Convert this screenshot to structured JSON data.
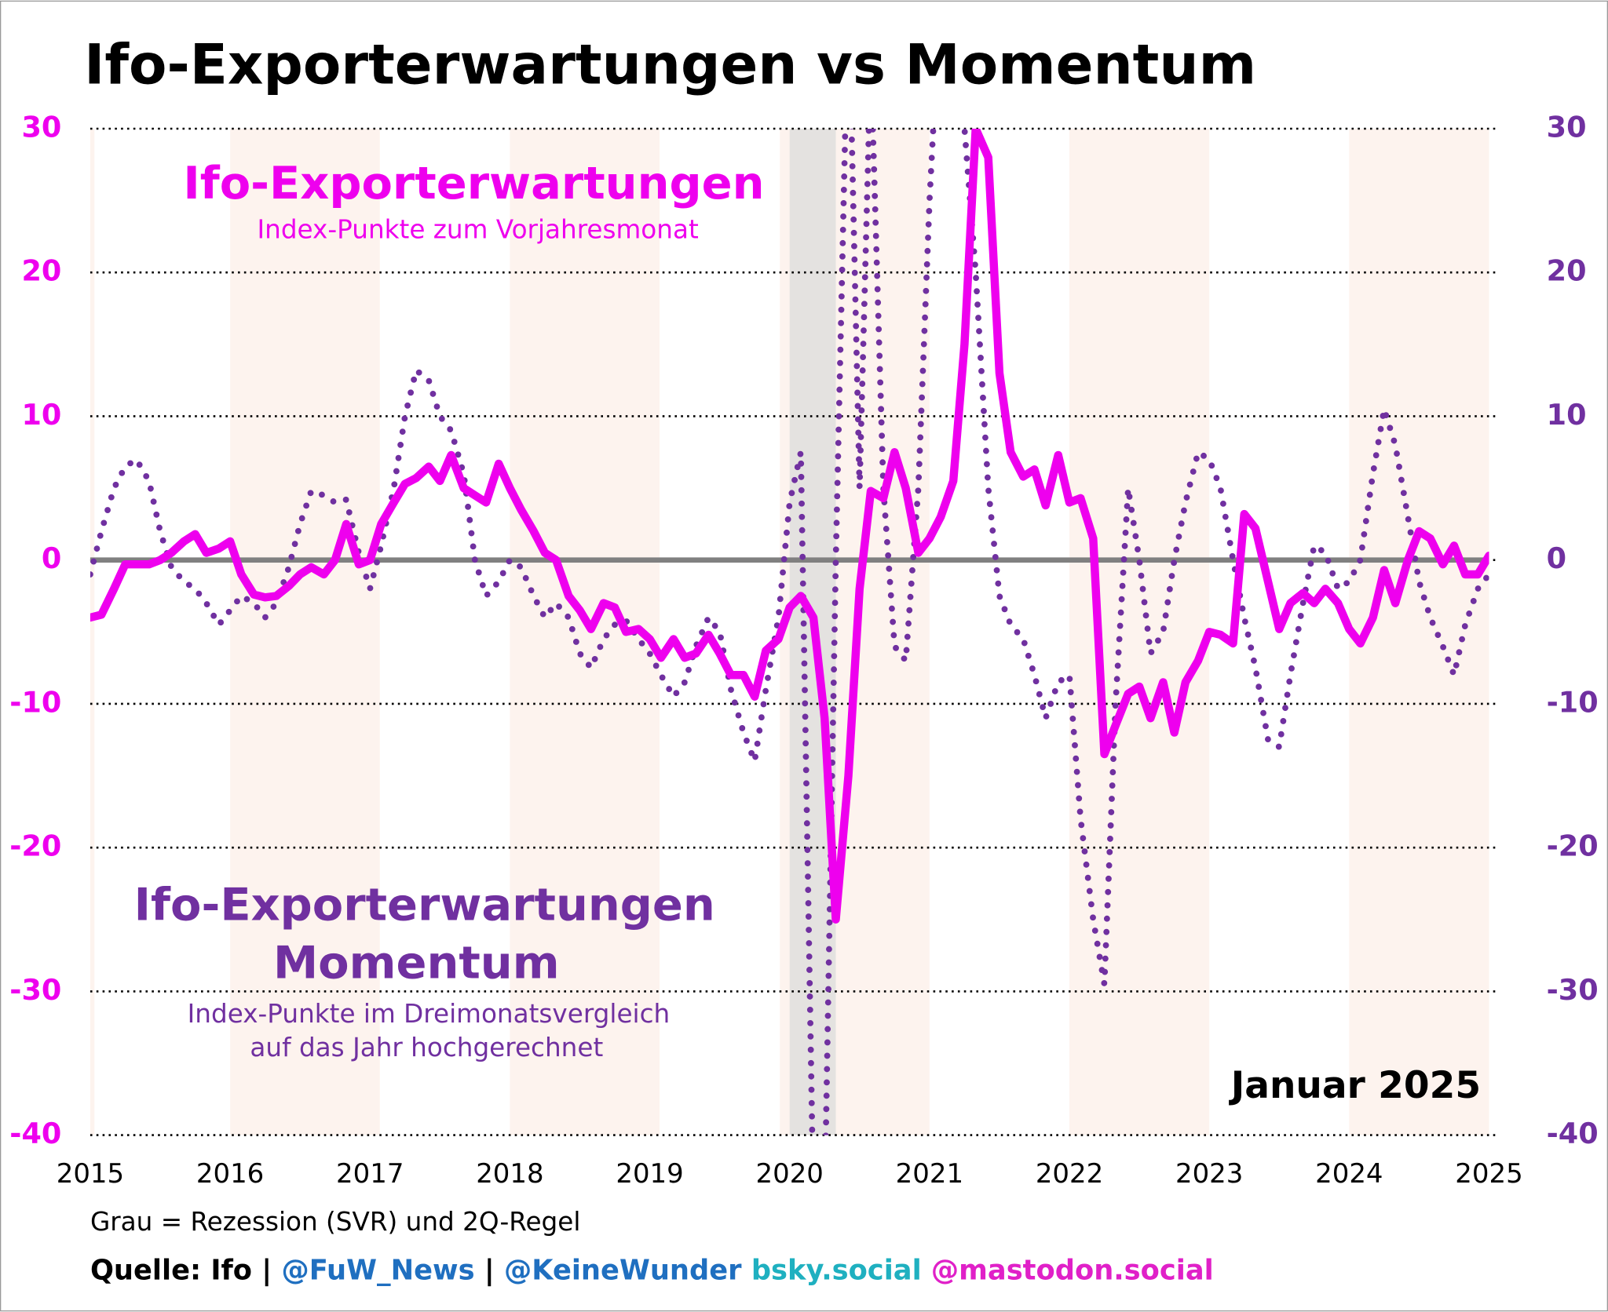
{
  "chart_data": {
    "type": "line",
    "title": "Ifo-Exporterwartungen vs Momentum",
    "annotations": {
      "series1_title": "Ifo-Exporterwartungen",
      "series1_subtitle": "Index-Punkte zum Vorjahresmonat",
      "series2_title_line1": "Ifo-Exporterwartungen",
      "series2_title_line2": "Momentum",
      "series2_subtitle_line1": "Index-Punkte im Dreimonatsvergleich",
      "series2_subtitle_line2": "auf das Jahr hochgerechnet",
      "date": "Januar 2025",
      "note": "Grau = Rezession (SVR) und 2Q-Regel",
      "source": [
        {
          "text": "Quelle: Ifo | ",
          "color": "#000000"
        },
        {
          "text": "@FuW_News",
          "color": "#1f6fc0"
        },
        {
          "text": " | ",
          "color": "#000000"
        },
        {
          "text": "@KeineWunder",
          "color": "#1f6fc0"
        },
        {
          "text": " bsky.social",
          "color": "#1fb0c0"
        },
        {
          "text": " @mastodon.social",
          "color": "#e020c8"
        }
      ]
    },
    "x": [
      2015,
      2015.08,
      2015.17,
      2015.25,
      2015.33,
      2015.42,
      2015.5,
      2015.58,
      2015.67,
      2015.75,
      2015.83,
      2015.92,
      2016,
      2016.08,
      2016.17,
      2016.25,
      2016.33,
      2016.42,
      2016.5,
      2016.58,
      2016.67,
      2016.75,
      2016.83,
      2016.92,
      2017,
      2017.08,
      2017.17,
      2017.25,
      2017.33,
      2017.42,
      2017.5,
      2017.58,
      2017.67,
      2017.75,
      2017.83,
      2017.92,
      2018,
      2018.08,
      2018.17,
      2018.25,
      2018.33,
      2018.42,
      2018.5,
      2018.58,
      2018.67,
      2018.75,
      2018.83,
      2018.92,
      2019,
      2019.08,
      2019.17,
      2019.25,
      2019.33,
      2019.42,
      2019.5,
      2019.58,
      2019.67,
      2019.75,
      2019.83,
      2019.92,
      2020,
      2020.08,
      2020.17,
      2020.25,
      2020.33,
      2020.42,
      2020.5,
      2020.58,
      2020.67,
      2020.75,
      2020.83,
      2020.92,
      2021,
      2021.08,
      2021.17,
      2021.25,
      2021.33,
      2021.42,
      2021.5,
      2021.58,
      2021.67,
      2021.75,
      2021.83,
      2021.92,
      2022,
      2022.08,
      2022.17,
      2022.25,
      2022.33,
      2022.42,
      2022.5,
      2022.58,
      2022.67,
      2022.75,
      2022.83,
      2022.92,
      2023,
      2023.08,
      2023.17,
      2023.25,
      2023.33,
      2023.42,
      2023.5,
      2023.58,
      2023.67,
      2023.75,
      2023.83,
      2023.92,
      2024,
      2024.08,
      2024.17,
      2024.25,
      2024.33,
      2024.42,
      2024.5,
      2024.58,
      2024.67,
      2024.75,
      2024.83,
      2024.92,
      2025
    ],
    "series": [
      {
        "name": "Ifo-Exporterwartungen",
        "color": "#ee00ee",
        "style": "solid",
        "axis": "y",
        "values": [
          -4,
          -3.8,
          -2,
          -0.3,
          -0.3,
          -0.3,
          0,
          0.5,
          1.3,
          1.8,
          0.5,
          0.8,
          1.3,
          -1,
          -2.4,
          -2.6,
          -2.5,
          -1.8,
          -1,
          -0.5,
          -1,
          0,
          2.5,
          -0.3,
          0,
          2.5,
          4,
          5.3,
          5.7,
          6.5,
          5.5,
          7.3,
          5,
          4.5,
          4,
          6.7,
          5,
          3.5,
          2,
          0.5,
          0,
          -2.5,
          -3.5,
          -4.8,
          -3,
          -3.3,
          -5,
          -4.8,
          -5.5,
          -6.8,
          -5.5,
          -6.8,
          -6.5,
          -5.2,
          -6.5,
          -8,
          -8,
          -9.5,
          -6.3,
          -5.5,
          -3.3,
          -2.5,
          -4,
          -11,
          -25,
          -15,
          -2,
          4.8,
          4.3,
          7.5,
          5,
          0.5,
          1.5,
          3,
          5.5,
          15,
          30,
          28,
          13,
          7.5,
          5.8,
          6.3,
          3.8,
          7.3,
          4,
          4.3,
          1.5,
          -13.5,
          -11.5,
          -9.3,
          -8.8,
          -11,
          -8.5,
          -12,
          -8.5,
          -7,
          -5,
          -5.2,
          -5.8,
          3.2,
          2.2,
          -1.5,
          -4.8,
          -3,
          -2.3,
          -3,
          -2,
          -3,
          -4.8,
          -5.8,
          -4,
          -0.7,
          -3,
          0,
          2,
          1.5,
          -0.3,
          1,
          -1,
          -1,
          0.3
        ]
      },
      {
        "name": "Ifo-Exporterwartungen Momentum",
        "color": "#7030a0",
        "style": "dotted",
        "axis": "y2",
        "values": [
          -1,
          2,
          5,
          6.5,
          7,
          5.5,
          2,
          -0.5,
          -1.5,
          -2,
          -3,
          -4.5,
          -3.5,
          -2.5,
          -3,
          -4,
          -3,
          -0.5,
          2.5,
          4.8,
          4.5,
          4,
          4.2,
          0.5,
          -2,
          1,
          5,
          10,
          13.2,
          12.5,
          10,
          9,
          6,
          0,
          -2.5,
          -1.5,
          0,
          -0.5,
          -2.5,
          -4,
          -3,
          -4,
          -6.5,
          -7.5,
          -5.5,
          -4.5,
          -4.2,
          -5.5,
          -6.5,
          -8,
          -9.5,
          -8.5,
          -6,
          -4,
          -5,
          -9,
          -12,
          -14,
          -9,
          -4,
          4,
          7.5,
          -45,
          -45,
          0,
          40,
          5,
          35,
          5,
          -6,
          -7,
          5,
          25,
          40,
          40,
          30,
          20,
          5,
          -2.5,
          -4.5,
          -5.5,
          -8,
          -11,
          -8.5,
          -8,
          -18,
          -25,
          -29.5,
          -10,
          5,
          0,
          -6.5,
          -5,
          0,
          4,
          7.5,
          7,
          5,
          0,
          -4,
          -7.5,
          -12.5,
          -13,
          -8,
          -3,
          1,
          0.5,
          -2,
          -1.5,
          0,
          6,
          10.5,
          8,
          3,
          -1.5,
          -4,
          -6,
          -8,
          -4.5,
          -2,
          -1
        ]
      }
    ],
    "xlim": [
      2015,
      2025
    ],
    "xticks": [
      2015,
      2016,
      2017,
      2018,
      2019,
      2020,
      2021,
      2022,
      2023,
      2024,
      2025
    ],
    "ylim": [
      -40,
      30
    ],
    "yticks": [
      -40,
      -30,
      -20,
      -10,
      0,
      10,
      20,
      30
    ],
    "y2lim": [
      -40,
      30
    ],
    "y2ticks": [
      -40,
      -30,
      -20,
      -10,
      0,
      10,
      20,
      30
    ],
    "ytick_color": "#ee00ee",
    "y2tick_color": "#7030a0",
    "grid": true,
    "reference_line": 0,
    "shaded_bands": [
      [
        2015,
        2015.03
      ],
      [
        2016,
        2017.07
      ],
      [
        2018,
        2019.07
      ],
      [
        2019.93,
        2021
      ],
      [
        2022,
        2023
      ],
      [
        2024,
        2025
      ]
    ],
    "band_color": "#fdf3ee",
    "recession": [
      [
        2020,
        2020.33
      ]
    ],
    "recession_color": "#e4e2e0"
  }
}
